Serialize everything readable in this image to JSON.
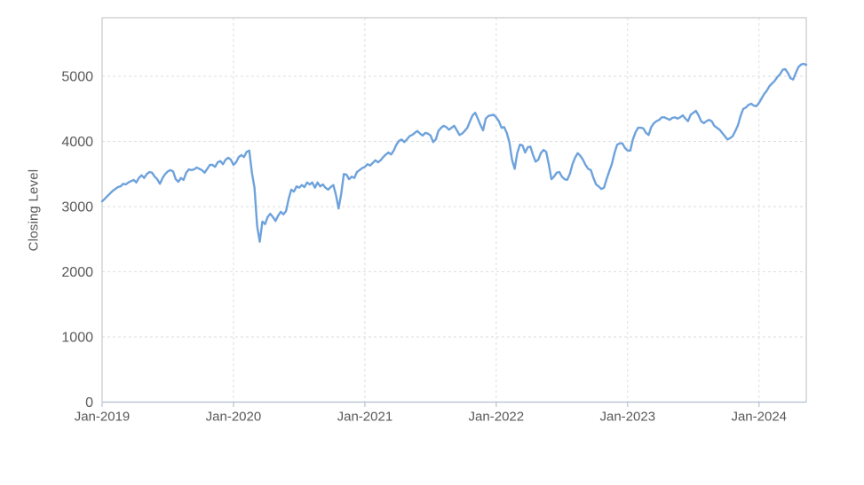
{
  "page": {
    "background": "#ffffff"
  },
  "chart_data": {
    "type": "line",
    "title": "",
    "xlabel": "",
    "ylabel": "Closing Level",
    "legend": false,
    "grid": true,
    "colors": {
      "line": "#6ea2dc",
      "grid": "#dedede",
      "border": "#c9c9c9",
      "axis": "#b7c3d5",
      "text": "#595959"
    },
    "x_axis": {
      "min": 2019.0,
      "max": 2024.36,
      "ticks": [
        2019,
        2020,
        2021,
        2022,
        2023,
        2024
      ],
      "tick_labels": [
        "Jan-2019",
        "Jan-2020",
        "Jan-2021",
        "Jan-2022",
        "Jan-2023",
        "Jan-2024"
      ]
    },
    "y_axis": {
      "label": "Closing Level",
      "min": 0,
      "max": 5898,
      "ticks": [
        0,
        1000,
        2000,
        3000,
        4000,
        5000
      ]
    },
    "series": [
      {
        "name": "Closing Level",
        "color": "#6ea2dc",
        "x_start": 2019.0,
        "x_step": 0.02,
        "values": [
          3080,
          3120,
          3160,
          3200,
          3240,
          3270,
          3300,
          3310,
          3350,
          3340,
          3370,
          3390,
          3410,
          3370,
          3440,
          3480,
          3440,
          3500,
          3530,
          3520,
          3460,
          3420,
          3350,
          3440,
          3500,
          3540,
          3560,
          3540,
          3420,
          3380,
          3440,
          3410,
          3520,
          3570,
          3560,
          3570,
          3600,
          3580,
          3560,
          3520,
          3580,
          3640,
          3640,
          3610,
          3680,
          3700,
          3650,
          3720,
          3750,
          3720,
          3640,
          3680,
          3760,
          3790,
          3760,
          3840,
          3860,
          3520,
          3290,
          2700,
          2460,
          2770,
          2730,
          2840,
          2890,
          2840,
          2780,
          2860,
          2920,
          2880,
          2930,
          3120,
          3260,
          3230,
          3310,
          3290,
          3330,
          3300,
          3370,
          3340,
          3370,
          3290,
          3370,
          3310,
          3340,
          3290,
          3260,
          3300,
          3330,
          3180,
          2970,
          3200,
          3500,
          3490,
          3420,
          3460,
          3440,
          3530,
          3560,
          3590,
          3610,
          3650,
          3630,
          3670,
          3710,
          3680,
          3710,
          3760,
          3800,
          3830,
          3800,
          3860,
          3950,
          4010,
          4030,
          3990,
          4030,
          4080,
          4100,
          4130,
          4160,
          4120,
          4090,
          4130,
          4120,
          4090,
          3990,
          4030,
          4160,
          4210,
          4240,
          4220,
          4180,
          4210,
          4240,
          4170,
          4100,
          4120,
          4160,
          4210,
          4310,
          4400,
          4440,
          4350,
          4250,
          4170,
          4350,
          4390,
          4400,
          4410,
          4370,
          4310,
          4210,
          4220,
          4130,
          3990,
          3720,
          3580,
          3820,
          3950,
          3940,
          3830,
          3910,
          3920,
          3790,
          3690,
          3720,
          3820,
          3870,
          3840,
          3650,
          3420,
          3460,
          3520,
          3530,
          3460,
          3420,
          3410,
          3500,
          3650,
          3750,
          3820,
          3780,
          3720,
          3640,
          3580,
          3560,
          3440,
          3340,
          3310,
          3270,
          3290,
          3420,
          3540,
          3650,
          3820,
          3950,
          3970,
          3970,
          3900,
          3860,
          3860,
          4030,
          4140,
          4210,
          4210,
          4200,
          4130,
          4100,
          4220,
          4280,
          4310,
          4330,
          4370,
          4370,
          4350,
          4330,
          4360,
          4370,
          4350,
          4370,
          4400,
          4350,
          4310,
          4410,
          4440,
          4470,
          4400,
          4310,
          4280,
          4310,
          4330,
          4310,
          4240,
          4210,
          4180,
          4130,
          4080,
          4030,
          4050,
          4080,
          4160,
          4250,
          4390,
          4500,
          4520,
          4560,
          4580,
          4550,
          4540,
          4590,
          4660,
          4730,
          4780,
          4850,
          4890,
          4930,
          4990,
          5030,
          5100,
          5110,
          5050,
          4970,
          4950,
          5050,
          5140,
          5180,
          5190,
          5175
        ]
      }
    ]
  }
}
